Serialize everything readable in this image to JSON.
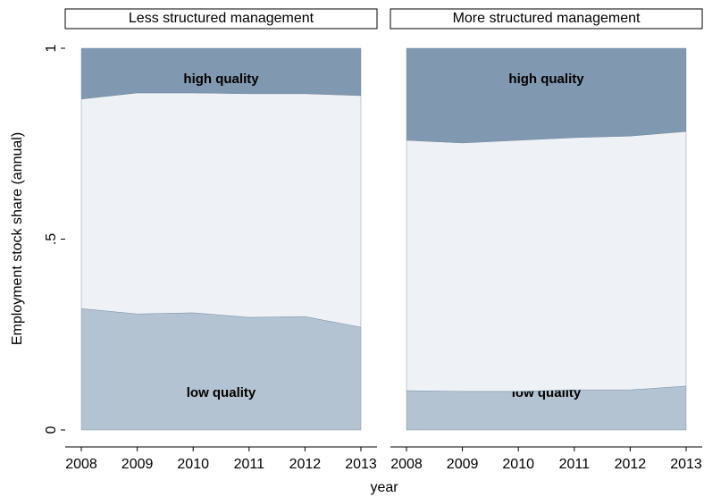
{
  "ylabel": "Employment stock share (annual)",
  "xlabel": "year",
  "chart_data": [
    {
      "type": "area",
      "title": "Less structured management",
      "x": [
        2008,
        2009,
        2010,
        2011,
        2012,
        2013
      ],
      "xlim": [
        2008,
        2013
      ],
      "xticks": [
        2008,
        2009,
        2010,
        2011,
        2012,
        2013
      ],
      "ylim": [
        0,
        1
      ],
      "yticks": [
        0,
        {
          "value": 0.5,
          "label": ".5"
        },
        1
      ],
      "stacked": true,
      "series": [
        {
          "name": "low quality",
          "color": "#b4c3d1",
          "values": [
            0.318,
            0.304,
            0.307,
            0.295,
            0.297,
            0.269
          ]
        },
        {
          "color": "#eef1f5",
          "values": [
            0.549,
            0.579,
            0.576,
            0.586,
            0.584,
            0.607
          ]
        },
        {
          "name": "high quality",
          "color": "#8098b0",
          "values": [
            0.133,
            0.117,
            0.117,
            0.119,
            0.119,
            0.124
          ]
        }
      ]
    },
    {
      "type": "area",
      "title": "More structured management",
      "x": [
        2008,
        2009,
        2010,
        2011,
        2012,
        2013
      ],
      "xlim": [
        2008,
        2013
      ],
      "xticks": [
        2008,
        2009,
        2010,
        2011,
        2012,
        2013
      ],
      "ylim": [
        0,
        1
      ],
      "yticks": [
        0,
        {
          "value": 0.5,
          "label": ".5"
        },
        1
      ],
      "stacked": true,
      "series": [
        {
          "name": "low quality",
          "color": "#b4c3d1",
          "values": [
            0.103,
            0.101,
            0.101,
            0.105,
            0.105,
            0.115
          ]
        },
        {
          "color": "#eef1f5",
          "values": [
            0.656,
            0.651,
            0.658,
            0.661,
            0.665,
            0.667
          ]
        },
        {
          "name": "high quality",
          "color": "#8098b0",
          "values": [
            0.241,
            0.248,
            0.241,
            0.234,
            0.23,
            0.218
          ]
        }
      ]
    }
  ]
}
